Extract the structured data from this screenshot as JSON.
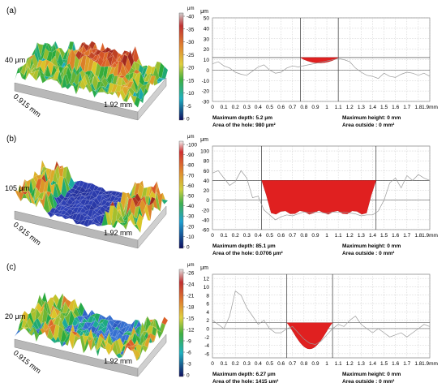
{
  "panels": [
    {
      "label": "(a)",
      "surface": {
        "height_label": "40 μm",
        "width_label": "0.915 mm",
        "length_label": "1.92 mm",
        "colormap": "mixed"
      },
      "colorbar": {
        "unit": "μm",
        "ticks": [
          "-40",
          "-35",
          "-30",
          "-25",
          "-20",
          "-15",
          "-10",
          "-5",
          "0"
        ]
      },
      "profile": {
        "unit": "μm",
        "ylim": [
          -30,
          50
        ],
        "yticks": [
          50,
          40,
          30,
          20,
          10,
          0,
          -10,
          -20,
          -30
        ],
        "xlim": [
          0,
          1.9
        ],
        "xticks": [
          "0",
          "0.1",
          "0.2",
          "0.3",
          "0.4",
          "0.5",
          "0.6",
          "0.7",
          "0.8",
          "0.9",
          "1",
          "1.1",
          "1.2",
          "1.3",
          "1.4",
          "1.5",
          "1.6",
          "1.7",
          "1.8",
          "1.9mm"
        ],
        "hole": {
          "x_left": 0.77,
          "x_right": 1.1,
          "level": 12,
          "depth": 5.2
        },
        "stats": {
          "max_depth": "Maximum depth: 5.2 μm",
          "hole_area": "Area of the hole: 980 μm²",
          "max_height": "Maximum height: 0 mm",
          "area_outside": "Area outside : 0 mm²"
        }
      }
    },
    {
      "label": "(b)",
      "surface": {
        "height_label": "105 μm",
        "width_label": "0.915 mm",
        "length_label": "1.92 mm",
        "colormap": "deep-blue"
      },
      "colorbar": {
        "unit": "μm",
        "ticks": [
          "-100",
          "-90",
          "-80",
          "-70",
          "-60",
          "-50",
          "-40",
          "-30",
          "-20",
          "-10",
          "0"
        ]
      },
      "profile": {
        "unit": "μm",
        "ylim": [
          -60,
          110
        ],
        "yticks": [
          100,
          80,
          60,
          40,
          20,
          0,
          -20,
          -40,
          -60
        ],
        "xlim": [
          0,
          1.9
        ],
        "xticks": [
          "0",
          "0.1",
          "0.2",
          "0.3",
          "0.4",
          "0.5",
          "0.6",
          "0.7",
          "0.8",
          "0.9",
          "1",
          "1.1",
          "1.2",
          "1.3",
          "1.4",
          "1.5",
          "1.6",
          "1.7",
          "1.8",
          "1.9mm"
        ],
        "hole": {
          "x_left": 0.43,
          "x_right": 1.43,
          "level": 40,
          "depth": 85.1
        },
        "stats": {
          "max_depth": "Maximum depth: 85.1 μm",
          "hole_area": "Area of the hole: 0.0706 μm²",
          "max_height": "Maximum height: 0 mm",
          "area_outside": "Area outside : 0 mm²"
        }
      }
    },
    {
      "label": "(c)",
      "surface": {
        "height_label": "20 μm",
        "width_label": "0.915 mm",
        "length_label": "1.92 mm",
        "colormap": "blue"
      },
      "colorbar": {
        "unit": "μm",
        "ticks": [
          "-26",
          "-24",
          "-21",
          "-18",
          "-15",
          "-12",
          "-9",
          "-6",
          "-3",
          "0"
        ]
      },
      "profile": {
        "unit": "μm",
        "ylim": [
          -7,
          13
        ],
        "yticks": [
          12,
          10,
          8,
          6,
          4,
          2,
          0,
          -2,
          -4,
          -6
        ],
        "xlim": [
          0,
          1.9
        ],
        "xticks": [
          "0",
          "0.1",
          "0.2",
          "0.3",
          "0.4",
          "0.5",
          "0.6",
          "0.7",
          "0.8",
          "0.9",
          "1",
          "1.1",
          "1.2",
          "1.3",
          "1.4",
          "1.5",
          "1.6",
          "1.7",
          "1.8",
          "1.9mm"
        ],
        "hole": {
          "x_left": 0.65,
          "x_right": 1.05,
          "level": 1.4,
          "depth": 6.27
        },
        "stats": {
          "max_depth": "Maximum depth: 6.27 μm",
          "hole_area": "Area of the hole: 1415 μm²",
          "max_height": "Maximum height: 0 mm",
          "area_outside": "Area outside : 0 mm²"
        }
      }
    }
  ],
  "chart_data": [
    {
      "type": "area",
      "panel": "(a)",
      "unit": "μm",
      "x": [
        0,
        0.05,
        0.1,
        0.15,
        0.2,
        0.25,
        0.3,
        0.35,
        0.4,
        0.45,
        0.5,
        0.55,
        0.6,
        0.65,
        0.7,
        0.75,
        0.8,
        0.85,
        0.9,
        0.95,
        1.0,
        1.05,
        1.1,
        1.15,
        1.2,
        1.25,
        1.3,
        1.35,
        1.4,
        1.45,
        1.5,
        1.55,
        1.6,
        1.65,
        1.7,
        1.75,
        1.8,
        1.85,
        1.9
      ],
      "y": [
        6,
        8,
        4,
        2,
        -2,
        -4,
        -5,
        -1,
        3,
        5,
        0,
        -3,
        -2,
        2,
        4,
        3,
        8,
        9,
        7,
        8,
        9,
        8,
        11,
        10,
        8,
        2,
        -2,
        -5,
        -6,
        -8,
        -3,
        -6,
        -7,
        -4,
        -2,
        -3,
        -5,
        -3,
        -6
      ],
      "ylim": [
        -30,
        50
      ]
    },
    {
      "type": "area",
      "panel": "(b)",
      "unit": "μm",
      "x": [
        0,
        0.05,
        0.1,
        0.15,
        0.2,
        0.25,
        0.3,
        0.35,
        0.4,
        0.45,
        0.5,
        0.55,
        0.6,
        0.65,
        0.7,
        0.75,
        0.8,
        0.85,
        0.9,
        0.95,
        1.0,
        1.05,
        1.1,
        1.15,
        1.2,
        1.25,
        1.3,
        1.35,
        1.4,
        1.45,
        1.5,
        1.55,
        1.6,
        1.65,
        1.7,
        1.75,
        1.8,
        1.85,
        1.9
      ],
      "y": [
        55,
        60,
        45,
        30,
        38,
        60,
        45,
        5,
        8,
        -20,
        -30,
        -40,
        -34,
        -30,
        -32,
        -28,
        -24,
        -26,
        -24,
        -25,
        -27,
        -24,
        -25,
        -24,
        -26,
        -28,
        -32,
        -30,
        -30,
        -22,
        0,
        35,
        45,
        25,
        50,
        40,
        52,
        45,
        40
      ],
      "ylim": [
        -60,
        110
      ]
    },
    {
      "type": "area",
      "panel": "(c)",
      "unit": "μm",
      "x": [
        0,
        0.05,
        0.1,
        0.15,
        0.2,
        0.25,
        0.3,
        0.35,
        0.4,
        0.45,
        0.5,
        0.55,
        0.6,
        0.65,
        0.7,
        0.75,
        0.8,
        0.85,
        0.9,
        0.95,
        1.0,
        1.05,
        1.1,
        1.15,
        1.2,
        1.25,
        1.3,
        1.35,
        1.4,
        1.45,
        1.5,
        1.55,
        1.6,
        1.65,
        1.7,
        1.75,
        1.8,
        1.85,
        1.9
      ],
      "y": [
        2,
        1,
        0,
        3,
        9,
        8,
        5,
        3,
        1,
        2,
        0,
        -1,
        -1,
        0,
        0.5,
        -1,
        -2.5,
        -3.5,
        -3.8,
        -3,
        -1.5,
        0,
        1,
        0.5,
        2,
        3,
        1,
        0,
        -1,
        0,
        -1,
        -2,
        -1.5,
        -1,
        -2,
        -1,
        0,
        1,
        0.5
      ],
      "ylim": [
        -7,
        13
      ]
    }
  ],
  "colors": {
    "grid": "#bdbdbd",
    "profile": "#9a9a9a",
    "fill": "#e02020",
    "axis": "#666666",
    "text": "#000000"
  }
}
